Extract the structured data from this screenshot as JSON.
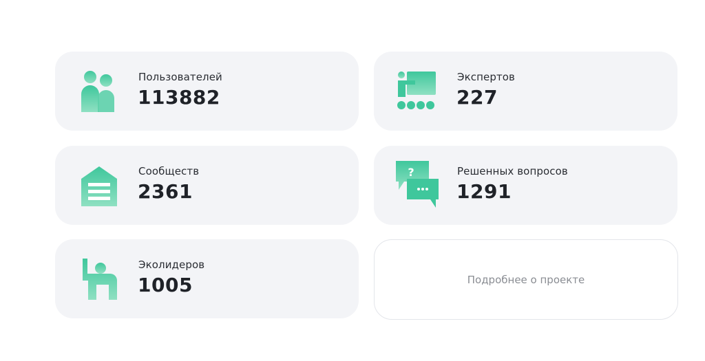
{
  "accent_color": "#3cc49a",
  "stats": [
    {
      "label": "Пользователей",
      "value": "113882",
      "icon": "users-icon"
    },
    {
      "label": "Экспертов",
      "value": "227",
      "icon": "presentation-icon"
    },
    {
      "label": "Сообществ",
      "value": "2361",
      "icon": "community-house-icon"
    },
    {
      "label": "Решенных вопросов",
      "value": "1291",
      "icon": "chat-question-icon"
    },
    {
      "label": "Эколидеров",
      "value": "1005",
      "icon": "raised-hand-person-icon"
    }
  ],
  "more_button": {
    "label": "Подробнее о проекте"
  }
}
